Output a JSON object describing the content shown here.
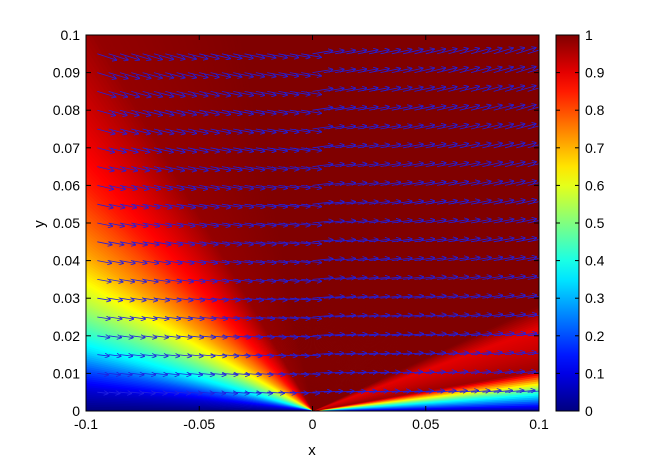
{
  "chart_data": {
    "type": "heatmap",
    "subtype": "filled-contour with quiver (vector) overlay",
    "title": "",
    "xlabel": "x",
    "ylabel": "y",
    "xlim": [
      -0.1,
      0.1
    ],
    "ylim": [
      0,
      0.1
    ],
    "x_ticks": [
      "-0.1",
      "-0.05",
      "0",
      "0.05",
      "0.1"
    ],
    "y_ticks": [
      "0",
      "0.01",
      "0.02",
      "0.03",
      "0.04",
      "0.05",
      "0.06",
      "0.07",
      "0.08",
      "0.09",
      "0.1"
    ],
    "colormap": "jet",
    "clim": [
      0,
      1
    ],
    "colorbar": {
      "location": "right",
      "ticks": [
        "0",
        "0.1",
        "0.2",
        "0.3",
        "0.4",
        "0.5",
        "0.6",
        "0.7",
        "0.8",
        "0.9",
        "1"
      ]
    },
    "field_origin": [
      0,
      0
    ],
    "field_value_by_direction_angle_deg": {
      "angles": [
        0,
        5,
        10,
        15,
        20,
        25,
        40,
        60,
        80,
        100,
        120,
        135,
        145,
        155,
        165,
        170,
        175,
        180
      ],
      "values": [
        0.02,
        0.45,
        0.97,
        0.93,
        0.9,
        1.0,
        1.0,
        1.0,
        1.0,
        1.0,
        0.98,
        0.85,
        0.72,
        0.55,
        0.35,
        0.2,
        0.08,
        0.0
      ]
    },
    "vector_field": {
      "color": "#2020e0",
      "x_spacing": 0.005,
      "y_spacing": 0.005,
      "direction": "rightward, pointing slightly downward on left half and slightly upward on right half",
      "magnitude": "larger away from the lower-left corner"
    },
    "grid": false
  },
  "colors": {
    "jet_stops": [
      "#00008f",
      "#0000ff",
      "#00ffff",
      "#ffff00",
      "#ff0000",
      "#800000"
    ],
    "axes": "#000000",
    "arrows": "#2020e0"
  }
}
